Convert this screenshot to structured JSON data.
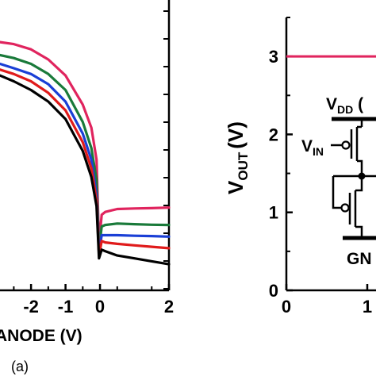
{
  "panel_label": "(a)",
  "chart_data": [
    {
      "type": "line",
      "title": "",
      "xlabel": "ANODE (V)",
      "xlim": [
        -2.9,
        2.0
      ],
      "ylim": [
        0,
        1
      ],
      "x_ticks": [
        "-2",
        "-1",
        "0",
        "2"
      ],
      "x_tick_values": [
        -2,
        -1,
        0,
        2
      ],
      "grid": false,
      "series": [
        {
          "color": "#e0245e",
          "x": [
            -2.9,
            -2.5,
            -2,
            -1.5,
            -1,
            -0.5,
            -0.25,
            -0.1,
            -0.03,
            0.05,
            0.15,
            0.5,
            1,
            1.5,
            2
          ],
          "y": [
            0.855,
            0.848,
            0.83,
            0.795,
            0.74,
            0.64,
            0.56,
            0.45,
            0.16,
            0.26,
            0.27,
            0.28,
            0.282,
            0.283,
            0.285
          ]
        },
        {
          "color": "#1a7a3a",
          "x": [
            -2.9,
            -2.5,
            -2,
            -1.5,
            -1,
            -0.5,
            -0.25,
            -0.1,
            -0.03,
            0.05,
            0.15,
            0.5,
            1,
            1.5,
            2
          ],
          "y": [
            0.81,
            0.8,
            0.78,
            0.745,
            0.69,
            0.58,
            0.49,
            0.38,
            0.14,
            0.22,
            0.225,
            0.23,
            0.228,
            0.226,
            0.225
          ]
        },
        {
          "color": "#1a3fd6",
          "x": [
            -2.9,
            -2.5,
            -2,
            -1.5,
            -1,
            -0.5,
            -0.25,
            -0.1,
            -0.03,
            0.05,
            0.15,
            0.5,
            1,
            1.5,
            2
          ],
          "y": [
            0.78,
            0.765,
            0.745,
            0.71,
            0.65,
            0.54,
            0.45,
            0.33,
            0.13,
            0.19,
            0.19,
            0.19,
            0.188,
            0.187,
            0.185
          ]
        },
        {
          "color": "#e01b1b",
          "x": [
            -2.9,
            -2.5,
            -2,
            -1.5,
            -1,
            -0.5,
            -0.25,
            -0.1,
            -0.03,
            0.05,
            0.15,
            0.5,
            1,
            1.5,
            2
          ],
          "y": [
            0.76,
            0.745,
            0.72,
            0.68,
            0.62,
            0.51,
            0.42,
            0.31,
            0.12,
            0.17,
            0.165,
            0.16,
            0.155,
            0.15,
            0.145
          ]
        },
        {
          "color": "#000000",
          "x": [
            -2.9,
            -2.5,
            -2,
            -1.5,
            -1,
            -0.5,
            -0.25,
            -0.1,
            -0.03,
            0.05,
            0.15,
            0.5,
            1,
            1.5,
            2
          ],
          "y": [
            0.74,
            0.72,
            0.69,
            0.65,
            0.59,
            0.48,
            0.39,
            0.29,
            0.11,
            0.14,
            0.135,
            0.12,
            0.11,
            0.1,
            0.09
          ]
        }
      ]
    },
    {
      "type": "line",
      "title": "",
      "xlabel": "",
      "ylabel_main": "V",
      "ylabel_sub": "OUT",
      "ylabel_unit": "(V)",
      "xlim": [
        0,
        1.2
      ],
      "ylim": [
        0,
        3.5
      ],
      "x_ticks": [
        "0",
        "1"
      ],
      "x_tick_values": [
        0,
        1
      ],
      "y_ticks": [
        "0",
        "1",
        "2",
        "3"
      ],
      "y_tick_values": [
        0,
        1,
        2,
        3
      ],
      "grid": false,
      "series": [
        {
          "color": "#e0245e",
          "x": [
            0,
            1.2
          ],
          "y": [
            3,
            3
          ]
        }
      ],
      "inset_labels": {
        "vdd_main": "V",
        "vdd_sub": "DD",
        "vdd_rest": " (",
        "vin_main": "V",
        "vin_sub": "IN",
        "gnd": "GN"
      }
    }
  ]
}
